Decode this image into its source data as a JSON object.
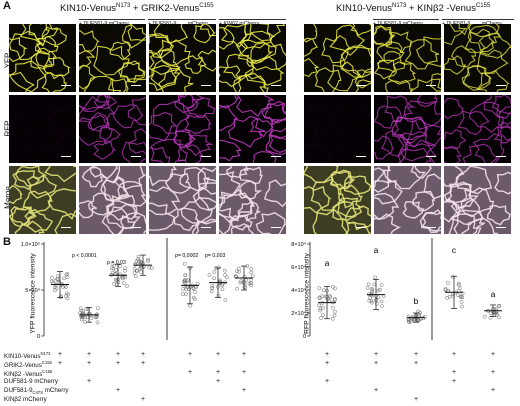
{
  "panel_a": {
    "letter": "A",
    "left_group": {
      "title_main": "KIN10-Venus",
      "title_sup": "N173",
      "title_mid": " + GRIK2-Venus",
      "title_sup2": "C155",
      "columns": [
        {
          "label": ""
        },
        {
          "label": "+ DUF581-9 mCherry"
        },
        {
          "label": "+ DUF581-9",
          "sub": "C47S",
          "tail": " mCherry"
        },
        {
          "label": "+ KINβ2 mCherry"
        }
      ]
    },
    "right_group": {
      "title_main": "KIN10-Venus",
      "title_sup": "N173",
      "title_mid": " + KINβ2 -Venus",
      "title_sup2": "C155",
      "columns": [
        {
          "label": ""
        },
        {
          "label": "+ DUF581-9 mCherry"
        },
        {
          "label": "+ DUF581-9",
          "sub": "C47S",
          "tail": " mCherry"
        }
      ]
    },
    "rows": [
      "YFP",
      "RFP",
      "Merge"
    ]
  },
  "panel_b": {
    "letter": "B",
    "conditions": [
      {
        "text": "KIN10-Venus",
        "sup": "N173"
      },
      {
        "text": "GRIK2-Venus",
        "sup": "C155"
      },
      {
        "text": "KINβ2 -Venus",
        "sup": "C155"
      },
      {
        "text": "DUF581-9 mCherry"
      },
      {
        "text": "DUF581-9",
        "sub": "C47S",
        "tail": " mCherry"
      },
      {
        "text": "KINβ2  mCherry"
      }
    ],
    "chart_data": [
      {
        "type": "scatter",
        "ylabel": "YFP fluorescence intensity",
        "ylim": [
          0,
          100000
        ],
        "yticks": [
          "0",
          "5×10⁴",
          "1.0×10⁵"
        ],
        "annotations": [
          "p < 0,0001",
          "p = 0,03",
          "p= 0,0002",
          "p= 0,003"
        ],
        "groups": [
          {
            "mean": 56000,
            "sd": 14000,
            "n": 28
          },
          {
            "mean": 23000,
            "sd": 8000,
            "n": 30
          },
          {
            "mean": 66000,
            "sd": 12000,
            "n": 26
          },
          {
            "mean": 77000,
            "sd": 11000,
            "n": 26
          },
          {
            "mean": 55000,
            "sd": 20000,
            "n": 30
          },
          {
            "mean": 58000,
            "sd": 16000,
            "n": 24
          },
          {
            "mean": 63000,
            "sd": 13000,
            "n": 24
          }
        ],
        "plus_rows": [
          [
            1,
            1,
            1,
            1,
            1,
            1,
            1
          ],
          [
            1,
            1,
            1,
            1,
            0,
            0,
            0
          ],
          [
            0,
            0,
            0,
            0,
            1,
            1,
            1
          ],
          [
            0,
            1,
            0,
            0,
            0,
            1,
            0
          ],
          [
            0,
            0,
            1,
            0,
            0,
            0,
            1
          ],
          [
            0,
            0,
            0,
            1,
            0,
            0,
            0
          ]
        ]
      },
      {
        "type": "scatter",
        "ylabel": "RFP fluorescence intensity",
        "ylim": [
          0,
          80000
        ],
        "yticks": [
          "0",
          "2×10⁴",
          "4×10⁴",
          "6×10⁴",
          "8×10⁴"
        ],
        "letters": [
          "a",
          "a",
          "b",
          "c",
          "a"
        ],
        "groups": [
          {
            "mean": 29000,
            "sd": 14000,
            "n": 28
          },
          {
            "mean": 36000,
            "sd": 13000,
            "n": 26
          },
          {
            "mean": 16000,
            "sd": 4000,
            "n": 26
          },
          {
            "mean": 38000,
            "sd": 14000,
            "n": 22
          },
          {
            "mean": 22000,
            "sd": 5000,
            "n": 18
          }
        ],
        "plus_rows": [
          [
            1,
            1,
            1,
            1,
            1
          ],
          [
            1,
            1,
            1,
            0,
            0
          ],
          [
            0,
            0,
            0,
            1,
            1
          ],
          [
            1,
            0,
            0,
            1,
            0
          ],
          [
            0,
            1,
            0,
            0,
            1
          ],
          [
            0,
            0,
            1,
            0,
            0
          ]
        ]
      }
    ]
  }
}
